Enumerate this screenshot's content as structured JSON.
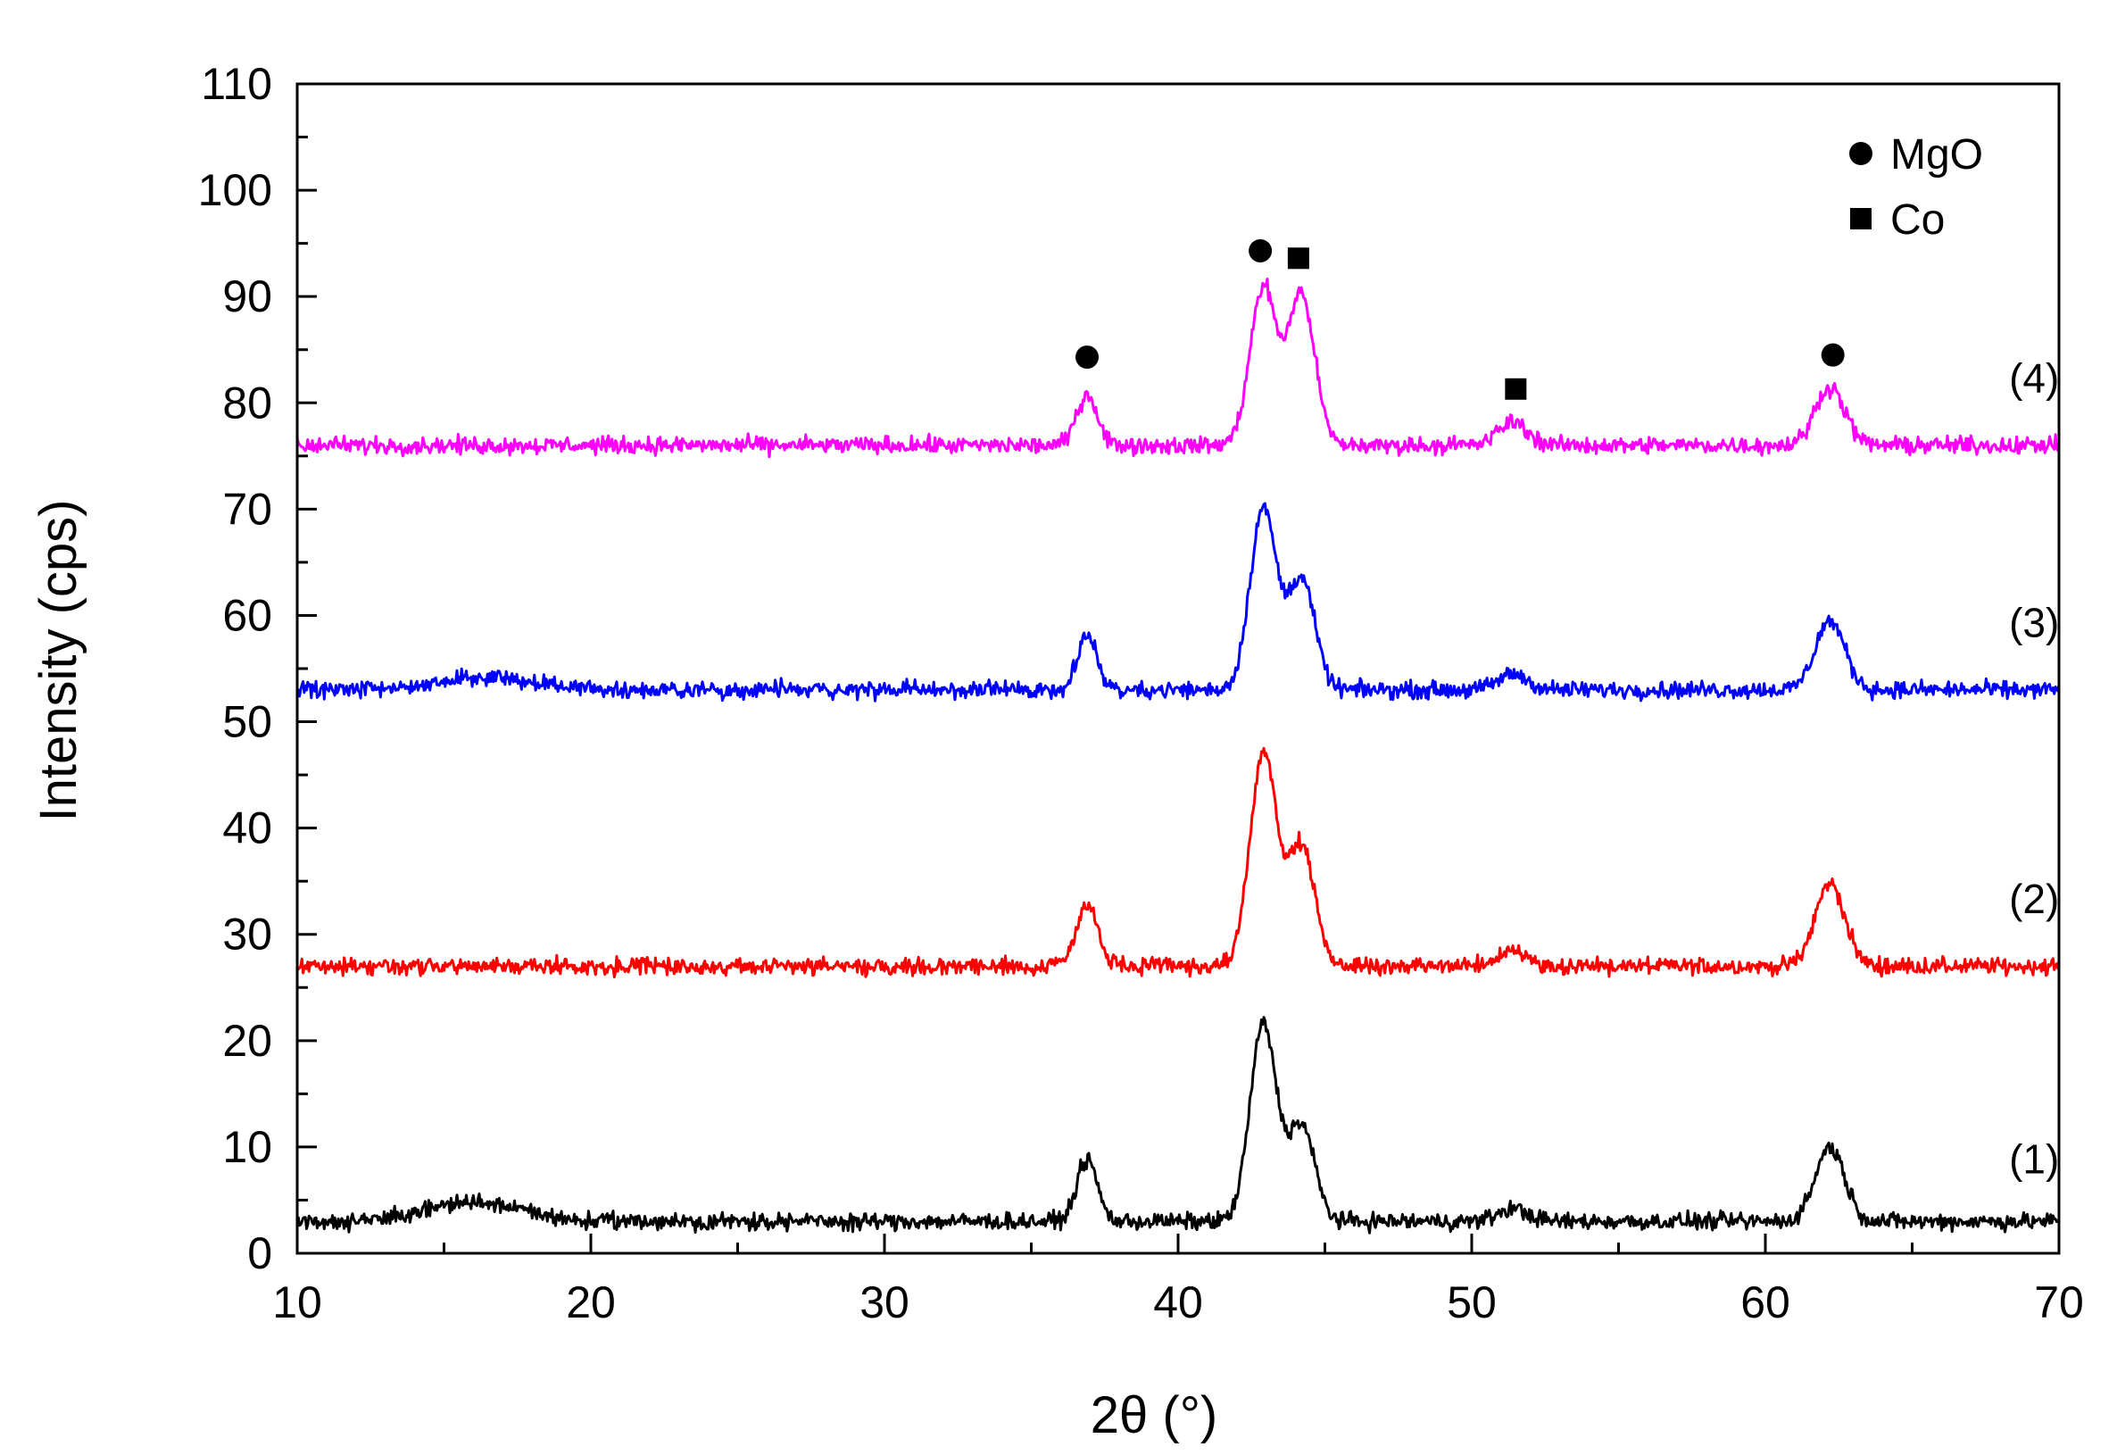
{
  "chart_data": {
    "type": "line",
    "title": "",
    "xlabel": "2θ (°)",
    "ylabel": "Intensity (cps)",
    "xlim": [
      10,
      70
    ],
    "ylim": [
      0,
      110
    ],
    "x_ticks": [
      10,
      20,
      30,
      40,
      50,
      60,
      70
    ],
    "x_minor_step": 5,
    "y_ticks": [
      0,
      10,
      20,
      30,
      40,
      50,
      60,
      70,
      80,
      90,
      100,
      110
    ],
    "y_minor_step": 5,
    "grid": false,
    "legend": {
      "position": "top-right",
      "entries": [
        {
          "marker": "circle",
          "label": "MgO"
        },
        {
          "marker": "square",
          "label": "Co"
        }
      ]
    },
    "series": [
      {
        "name": "(1)",
        "color": "#000000",
        "baseline": 3,
        "noise": 0.6,
        "peaks": [
          {
            "x": 16.0,
            "height": 1.8,
            "width": 1.6
          },
          {
            "x": 36.9,
            "height": 5.8,
            "width": 0.35
          },
          {
            "x": 42.9,
            "height": 18.5,
            "width": 0.45
          },
          {
            "x": 44.2,
            "height": 9.0,
            "width": 0.45
          },
          {
            "x": 51.4,
            "height": 1.2,
            "width": 0.5
          },
          {
            "x": 62.2,
            "height": 7.0,
            "width": 0.5
          }
        ]
      },
      {
        "name": "(2)",
        "color": "#ff0000",
        "baseline": 27,
        "noise": 0.6,
        "peaks": [
          {
            "x": 36.9,
            "height": 6.0,
            "width": 0.35
          },
          {
            "x": 42.9,
            "height": 20.0,
            "width": 0.45
          },
          {
            "x": 44.2,
            "height": 11.5,
            "width": 0.45
          },
          {
            "x": 51.4,
            "height": 1.5,
            "width": 0.5
          },
          {
            "x": 62.2,
            "height": 7.8,
            "width": 0.5
          }
        ]
      },
      {
        "name": "(3)",
        "color": "#0000ff",
        "baseline": 53,
        "noise": 0.6,
        "peaks": [
          {
            "x": 16.5,
            "height": 1.2,
            "width": 1.6
          },
          {
            "x": 36.9,
            "height": 5.0,
            "width": 0.35
          },
          {
            "x": 42.9,
            "height": 17.0,
            "width": 0.45
          },
          {
            "x": 44.2,
            "height": 10.5,
            "width": 0.45
          },
          {
            "x": 51.4,
            "height": 1.5,
            "width": 0.5
          },
          {
            "x": 62.2,
            "height": 6.5,
            "width": 0.5
          }
        ]
      },
      {
        "name": "(4)",
        "color": "#ff00ff",
        "baseline": 76,
        "noise": 0.6,
        "peaks": [
          {
            "x": 36.9,
            "height": 4.8,
            "width": 0.35
          },
          {
            "x": 42.9,
            "height": 14.8,
            "width": 0.45
          },
          {
            "x": 44.2,
            "height": 14.2,
            "width": 0.45
          },
          {
            "x": 51.4,
            "height": 2.2,
            "width": 0.5
          },
          {
            "x": 62.2,
            "height": 5.5,
            "width": 0.5
          }
        ]
      }
    ],
    "annotations": [
      {
        "marker": "circle",
        "x": 36.9,
        "y": 84.3,
        "phase": "MgO"
      },
      {
        "marker": "circle",
        "x": 42.8,
        "y": 94.3,
        "phase": "MgO"
      },
      {
        "marker": "square",
        "x": 44.1,
        "y": 93.6,
        "phase": "Co"
      },
      {
        "marker": "square",
        "x": 51.5,
        "y": 81.3,
        "phase": "Co"
      },
      {
        "marker": "circle",
        "x": 62.3,
        "y": 84.5,
        "phase": "MgO"
      }
    ],
    "series_labels": [
      {
        "text": "(1)",
        "x": 68.3,
        "y": 7.5
      },
      {
        "text": "(2)",
        "x": 68.3,
        "y": 32.0
      },
      {
        "text": "(3)",
        "x": 68.3,
        "y": 58.0
      },
      {
        "text": "(4)",
        "x": 68.3,
        "y": 81.0
      }
    ]
  }
}
